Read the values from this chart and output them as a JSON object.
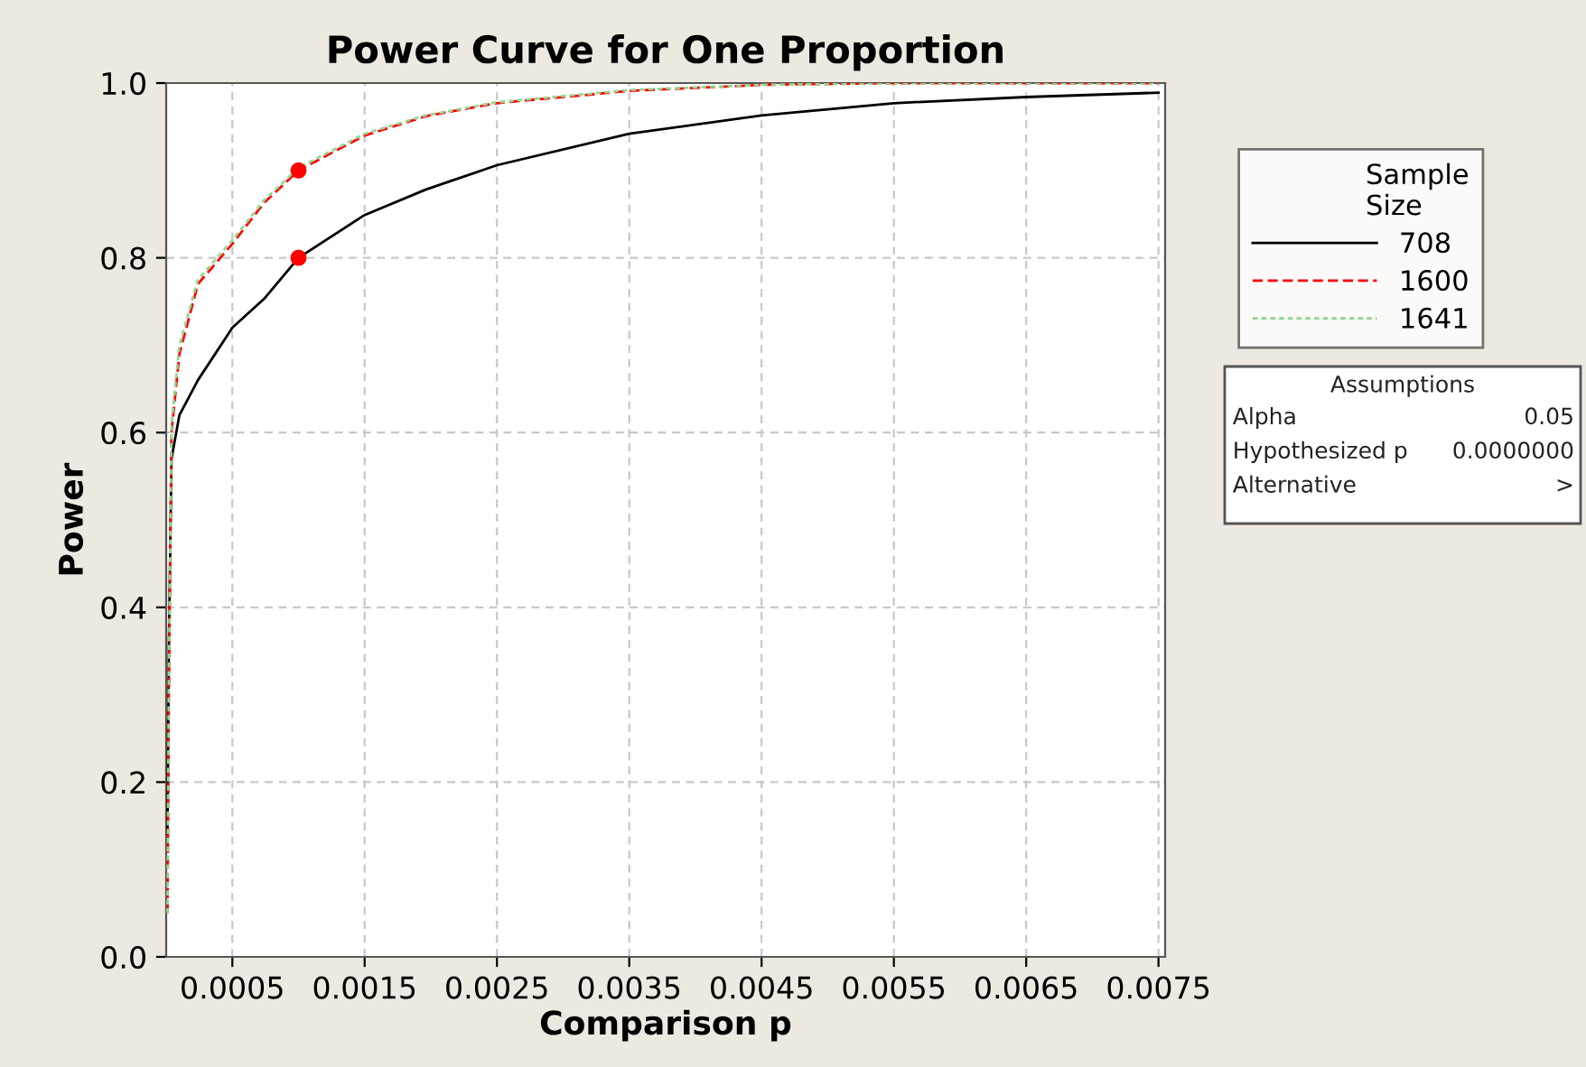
{
  "chart_data": {
    "type": "line",
    "title": "Power Curve for One Proportion",
    "xlabel": "Comparison p",
    "ylabel": "Power",
    "legend_title": "Sample Size",
    "legend": "right",
    "grid": true,
    "xlim": [
      0,
      0.00755
    ],
    "ylim": [
      0,
      1
    ],
    "xticks": [
      0.0005,
      0.0015,
      0.0025,
      0.0035,
      0.0045,
      0.0055,
      0.0065,
      0.0075
    ],
    "yticks": [
      {
        "value": 0,
        "label": "0.0"
      },
      {
        "value": 0.2,
        "label": "0.2"
      },
      {
        "value": 0.4,
        "label": "0.4"
      },
      {
        "value": 0.6,
        "label": "0.6"
      },
      {
        "value": 0.8,
        "label": "0.8"
      },
      {
        "value": 1,
        "label": "1.0"
      }
    ],
    "series": [
      {
        "name": "708",
        "color": "#000000",
        "line_style": "solid",
        "x": [
          1e-05,
          2e-05,
          4e-05,
          0.0001,
          0.00024,
          0.0005,
          0.00074,
          0.001,
          0.0015,
          0.00196,
          0.0025,
          0.0035,
          0.0045,
          0.0055,
          0.0065,
          0.0075
        ],
        "values": [
          0.14,
          0.35,
          0.57,
          0.62,
          0.66,
          0.72,
          0.753,
          0.8,
          0.849,
          0.878,
          0.906,
          0.942,
          0.963,
          0.977,
          0.984,
          0.989
        ]
      },
      {
        "name": "1600",
        "color": "#ff0000",
        "line_style": "dashed",
        "x": [
          1e-05,
          2e-05,
          4e-05,
          0.0001,
          0.00024,
          0.0005,
          0.00074,
          0.001,
          0.0015,
          0.00196,
          0.0025,
          0.0035,
          0.0045,
          0.0055,
          0.0065,
          0.0075
        ],
        "values": [
          0.05,
          0.3,
          0.6,
          0.69,
          0.77,
          0.816,
          0.863,
          0.9,
          0.94,
          0.962,
          0.977,
          0.991,
          0.998,
          1.0,
          1.0,
          1.0
        ]
      },
      {
        "name": "1641",
        "color": "#90d890",
        "line_style": "dotted",
        "x": [
          1e-05,
          2e-05,
          4e-05,
          0.0001,
          0.00024,
          0.0005,
          0.00074,
          0.001,
          0.0015,
          0.00196,
          0.0025,
          0.0035,
          0.0045,
          0.0055,
          0.0065,
          0.0075
        ],
        "values": [
          0.05,
          0.31,
          0.61,
          0.7,
          0.775,
          0.82,
          0.866,
          0.903,
          0.942,
          0.963,
          0.978,
          0.992,
          0.998,
          1.0,
          1.0,
          1.0
        ]
      },
      {
        "type": "scatter",
        "color": "#ff0000",
        "marker": "circle",
        "x": [
          0.001,
          0.001
        ],
        "values": [
          0.9,
          0.8
        ]
      }
    ],
    "annotations": [
      "Assumptions",
      "Alpha",
      "0.05",
      "Hypothesized p",
      "0.0000000",
      "Alternative",
      ">"
    ]
  }
}
